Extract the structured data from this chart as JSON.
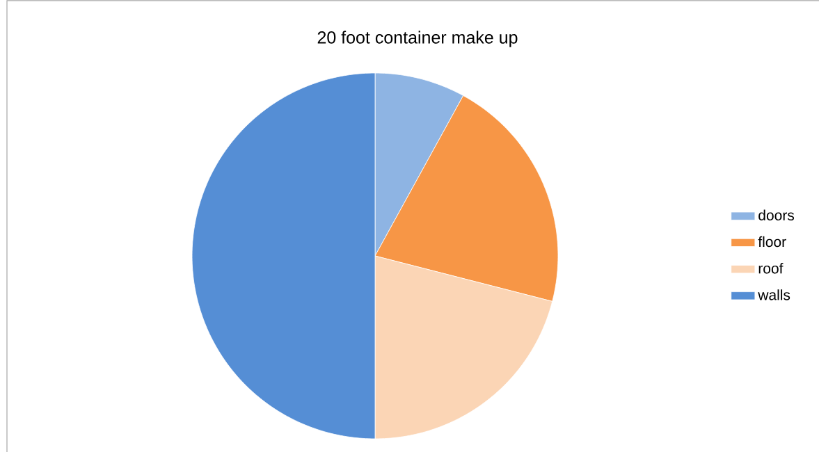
{
  "chart_data": {
    "type": "pie",
    "title": "20 foot  container make up",
    "categories": [
      "doors",
      "floor",
      "roof",
      "walls"
    ],
    "values": [
      8,
      21,
      21,
      50
    ],
    "colors": [
      "#8eb4e3",
      "#f79646",
      "#fbd5b5",
      "#558ed5"
    ],
    "legend": "right"
  }
}
